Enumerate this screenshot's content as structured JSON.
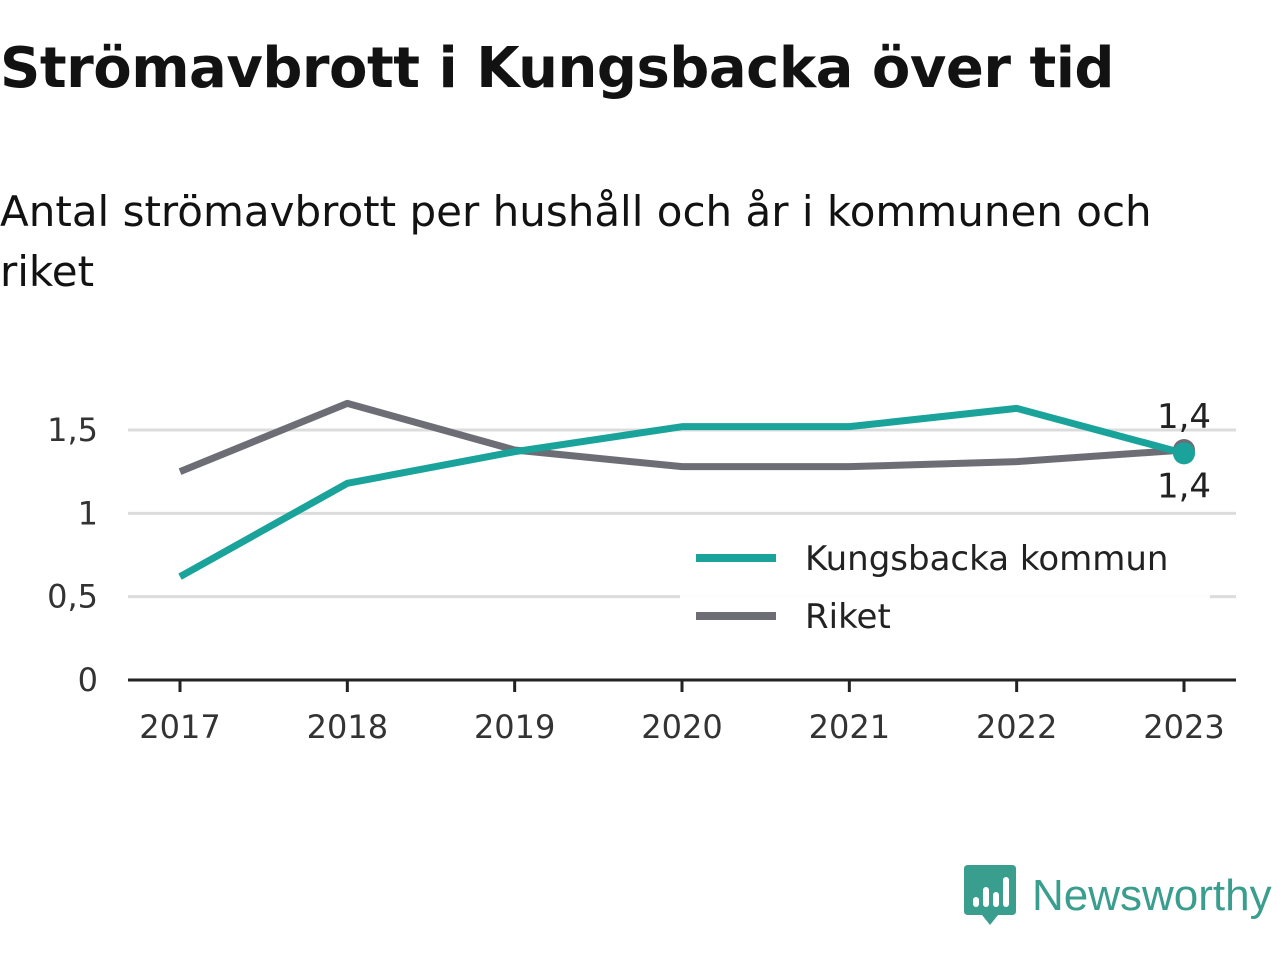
{
  "header": {
    "title": "Strömavbrott i Kungsbacka över tid",
    "subtitle": "Antal strömavbrott per hushåll och år i kommunen och riket"
  },
  "chart_data": {
    "type": "line",
    "title": "Strömavbrott i Kungsbacka över tid",
    "subtitle": "Antal strömavbrott per hushåll och år i kommunen och riket",
    "xlabel": "",
    "ylabel": "",
    "categories": [
      "2017",
      "2018",
      "2019",
      "2020",
      "2021",
      "2022",
      "2023"
    ],
    "ylim": [
      0,
      1.5
    ],
    "yticks": [
      {
        "value": 0,
        "label": "0"
      },
      {
        "value": 0.5,
        "label": "0,5"
      },
      {
        "value": 1,
        "label": "1"
      },
      {
        "value": 1.5,
        "label": "1,5"
      }
    ],
    "grid": "horizontal",
    "legend": "bottom-right",
    "series": [
      {
        "name": "Kungsbacka kommun",
        "color": "#1aa39a",
        "values": [
          0.62,
          1.18,
          1.37,
          1.52,
          1.52,
          1.63,
          1.36
        ],
        "end_label": "1,4"
      },
      {
        "name": "Riket",
        "color": "#6d6d75",
        "values": [
          1.25,
          1.66,
          1.38,
          1.28,
          1.28,
          1.31,
          1.38
        ],
        "end_label": "1,4"
      }
    ]
  },
  "brand": {
    "name": "Newsworthy",
    "color": "#3a9e8f",
    "icon": "bar-chart-icon"
  }
}
